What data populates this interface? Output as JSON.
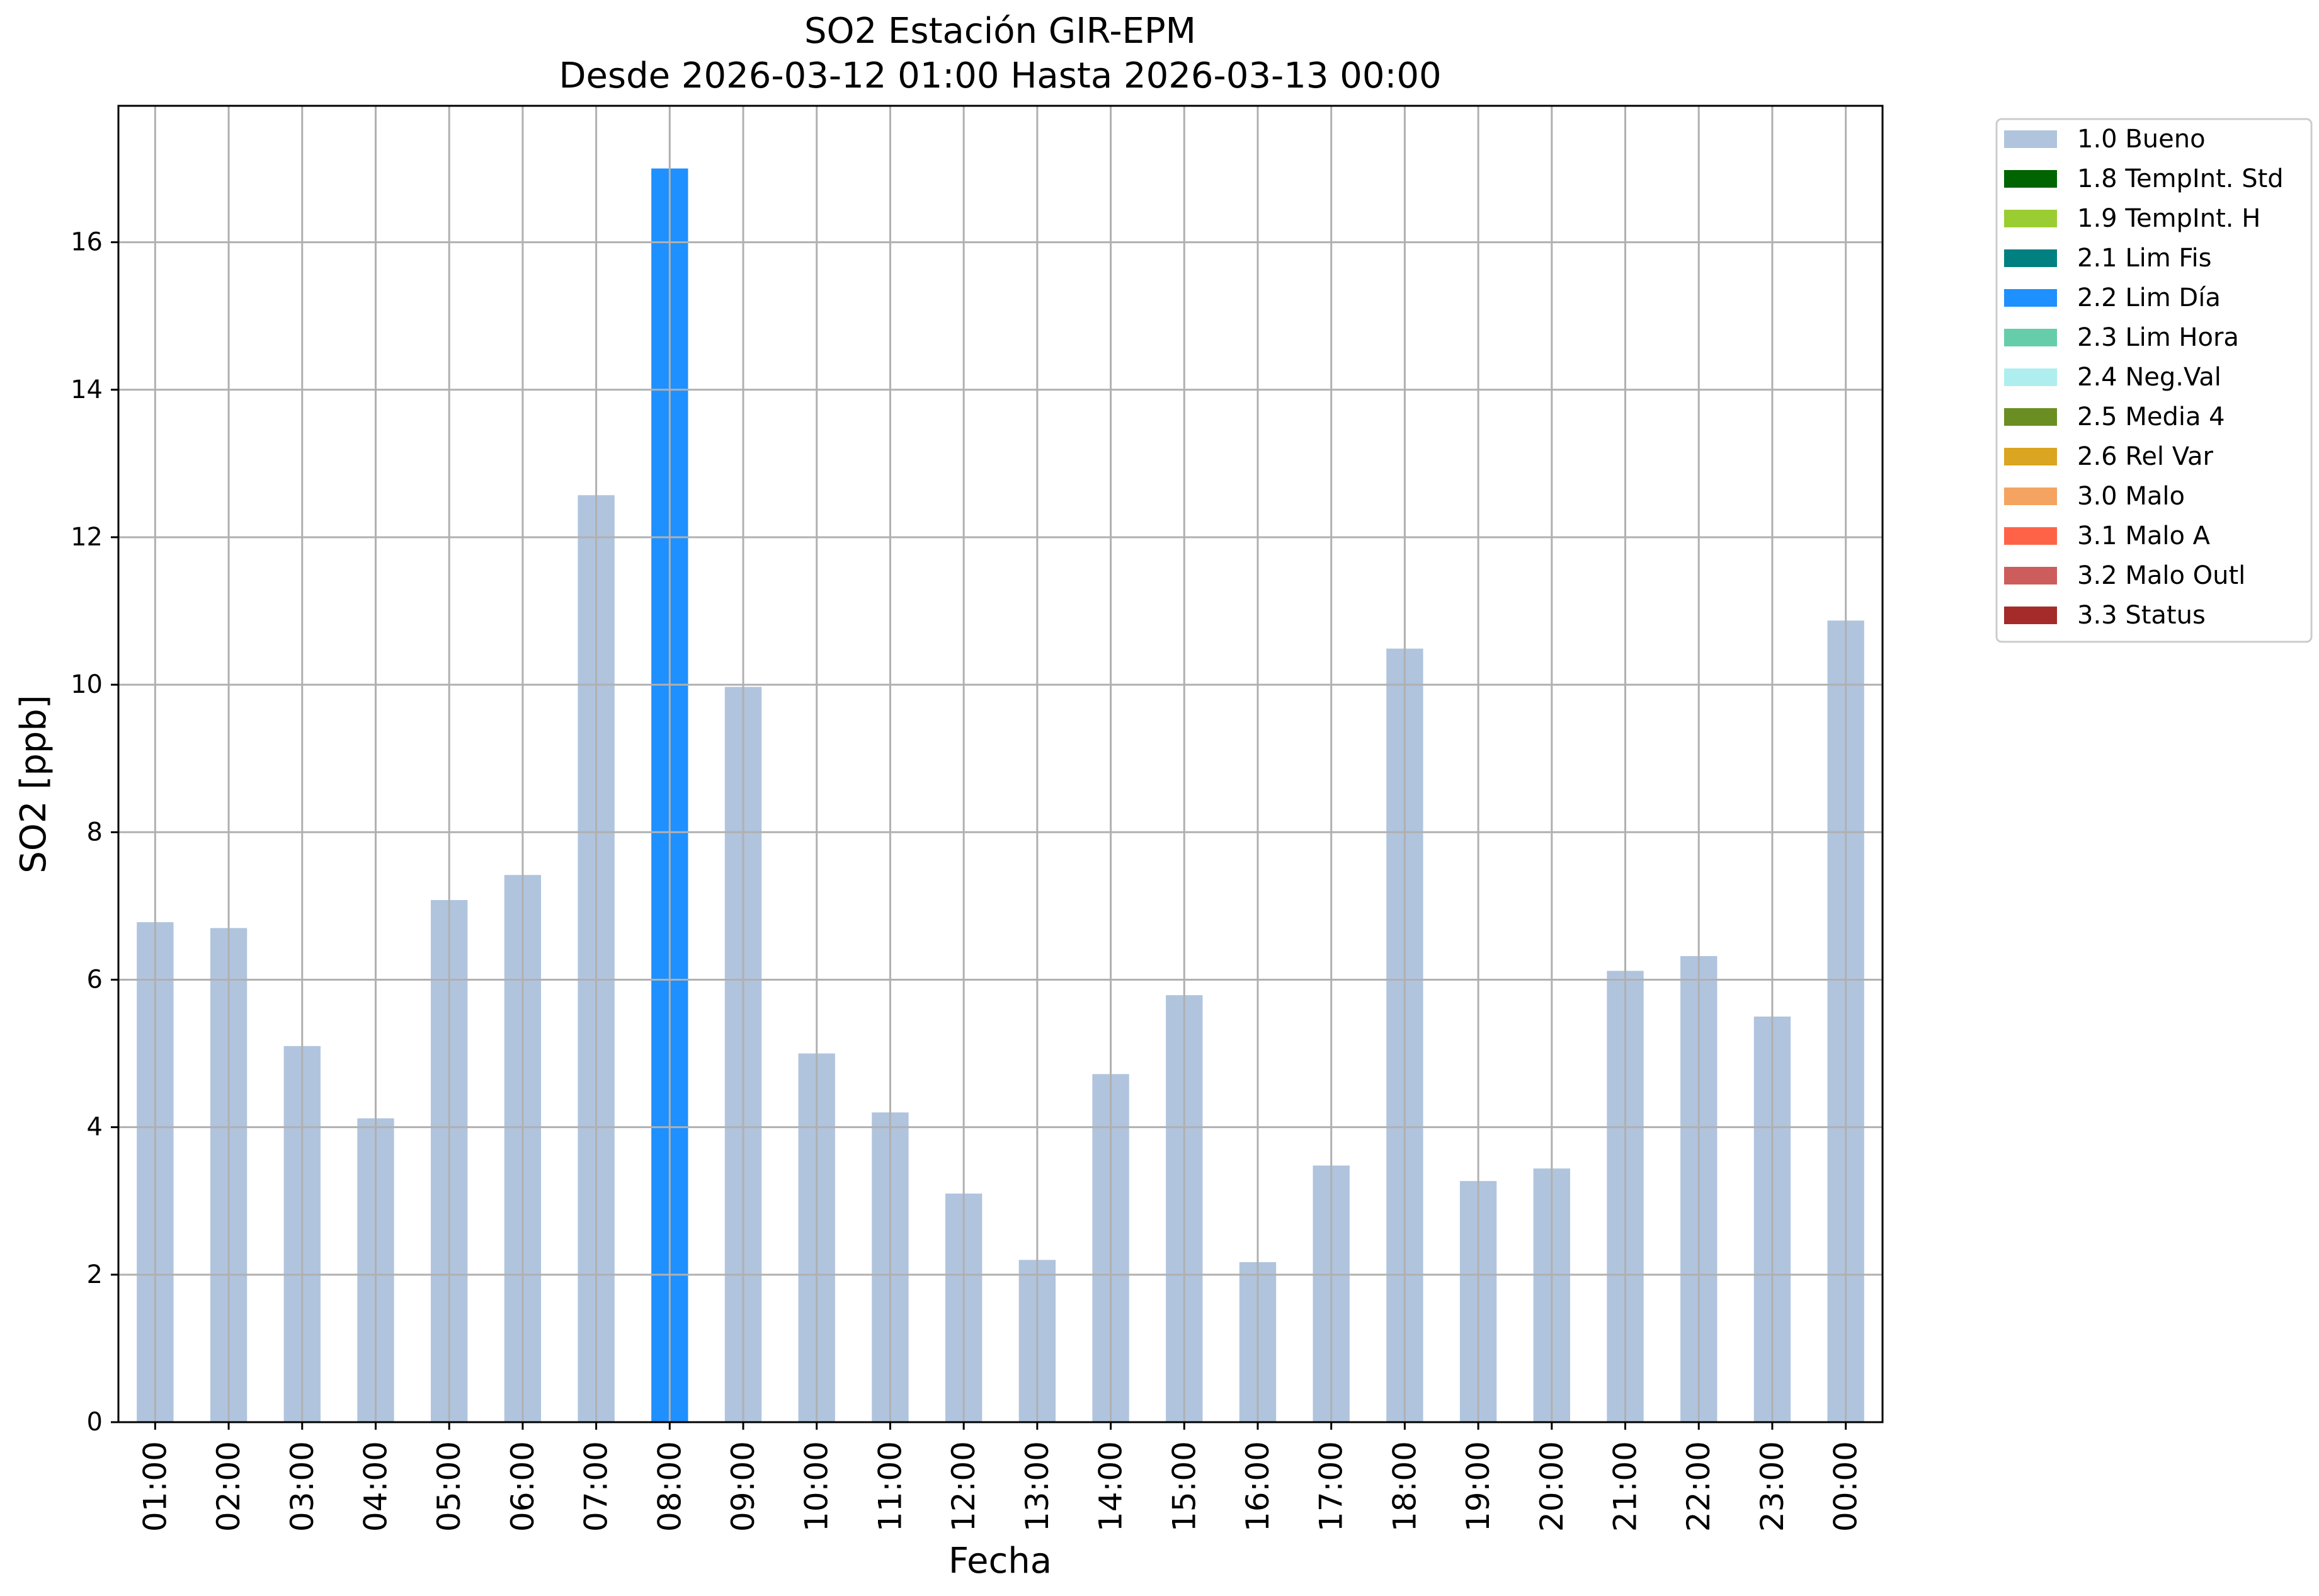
{
  "chart_data": {
    "type": "bar",
    "title": "SO2 Estación GIR-EPM",
    "subtitle": "Desde 2026-03-12 01:00 Hasta 2026-03-13 00:00",
    "xlabel": "Fecha",
    "ylabel": "SO2 [ppb]",
    "ylim": [
      0,
      17.85
    ],
    "yticks": [
      0,
      2,
      4,
      6,
      8,
      10,
      12,
      14,
      16
    ],
    "grid": true,
    "legend_position": "outside-top-right",
    "categories": [
      "01:00",
      "02:00",
      "03:00",
      "04:00",
      "05:00",
      "06:00",
      "07:00",
      "08:00",
      "09:00",
      "10:00",
      "11:00",
      "12:00",
      "13:00",
      "14:00",
      "15:00",
      "16:00",
      "17:00",
      "18:00",
      "19:00",
      "20:00",
      "21:00",
      "22:00",
      "23:00",
      "00:00"
    ],
    "values": [
      6.78,
      6.7,
      5.1,
      4.12,
      7.08,
      7.42,
      12.57,
      17.0,
      9.97,
      5.0,
      4.2,
      3.1,
      2.2,
      4.72,
      5.79,
      2.17,
      3.48,
      10.49,
      3.27,
      3.44,
      6.12,
      6.32,
      5.5,
      10.87
    ],
    "flags": [
      "1.0 Bueno",
      "1.0 Bueno",
      "1.0 Bueno",
      "1.0 Bueno",
      "1.0 Bueno",
      "1.0 Bueno",
      "1.0 Bueno",
      "2.2 Lim Día",
      "1.0 Bueno",
      "1.0 Bueno",
      "1.0 Bueno",
      "1.0 Bueno",
      "1.0 Bueno",
      "1.0 Bueno",
      "1.0 Bueno",
      "1.0 Bueno",
      "1.0 Bueno",
      "1.0 Bueno",
      "1.0 Bueno",
      "1.0 Bueno",
      "1.0 Bueno",
      "1.0 Bueno",
      "1.0 Bueno",
      "1.0 Bueno"
    ],
    "legend": [
      {
        "label": "1.0 Bueno",
        "color": "#b0c4de"
      },
      {
        "label": "1.8 TempInt. Std",
        "color": "#006400"
      },
      {
        "label": "1.9 TempInt. H",
        "color": "#9acd32"
      },
      {
        "label": "2.1 Lim Fis",
        "color": "#008080"
      },
      {
        "label": "2.2 Lim Día",
        "color": "#1e90ff"
      },
      {
        "label": "2.3 Lim Hora",
        "color": "#66cdaa"
      },
      {
        "label": "2.4 Neg.Val",
        "color": "#afeeee"
      },
      {
        "label": "2.5 Media 4",
        "color": "#6b8e23"
      },
      {
        "label": "2.6 Rel Var",
        "color": "#daa520"
      },
      {
        "label": "3.0 Malo",
        "color": "#f4a460"
      },
      {
        "label": "3.1 Malo A",
        "color": "#ff6347"
      },
      {
        "label": "3.2 Malo Outl",
        "color": "#cd5c5c"
      },
      {
        "label": "3.3 Status",
        "color": "#a52a2a"
      }
    ]
  }
}
